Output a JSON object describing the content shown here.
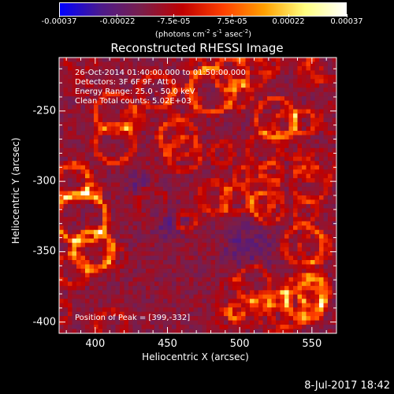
{
  "colorbar": {
    "tick_labels": [
      "-0.00037",
      "-0.00022",
      "-7.5e-05",
      "7.5e-05",
      "0.00022",
      "0.00037"
    ],
    "unit_text": "(photons cm",
    "unit_exp1": "-2",
    "unit_mid1": " s",
    "unit_exp2": "-1",
    "unit_mid2": " asec",
    "unit_exp3": "-2",
    "unit_end": ")"
  },
  "title": "Reconstructed RHESSI Image",
  "info_lines": [
    "26-Oct-2014 01:40:00.000 to 01:50:00.000",
    "Detectors: 3F 6F 9F, Att 0",
    "Energy Range: 25.0 - 50.0 keV",
    "Clean    Total counts: 5.02E+03"
  ],
  "peak_text": "Position of Peak = [399,-332]",
  "x_ticks": [
    "400",
    "450",
    "500",
    "550"
  ],
  "y_ticks": [
    "-250",
    "-300",
    "-350",
    "-400"
  ],
  "xlabel": "Heliocentric X (arcsec)",
  "ylabel": "Heliocentric Y (arcsec)",
  "footer_date": "8-Jul-2017 18:42",
  "chart_data": {
    "type": "heatmap",
    "title": "Reconstructed RHESSI Image",
    "xlabel": "Heliocentric X (arcsec)",
    "ylabel": "Heliocentric Y (arcsec)",
    "xlim": [
      375,
      567
    ],
    "ylim": [
      -408,
      -212
    ],
    "x_ticks": [
      400,
      450,
      500,
      550
    ],
    "y_ticks": [
      -250,
      -300,
      -350,
      -400
    ],
    "colorbar_range": [
      -0.00037,
      0.00037
    ],
    "colorbar_ticks": [
      -0.00037,
      -0.00022,
      -7.5e-05,
      7.5e-05,
      0.00022,
      0.00037
    ],
    "peak_position": [
      399,
      -332
    ],
    "colormap": [
      "#0000ff",
      "#4b1a8c",
      "#7a1e4a",
      "#c00000",
      "#ff4000",
      "#ffa000",
      "#ffff80",
      "#ffffff"
    ]
  }
}
